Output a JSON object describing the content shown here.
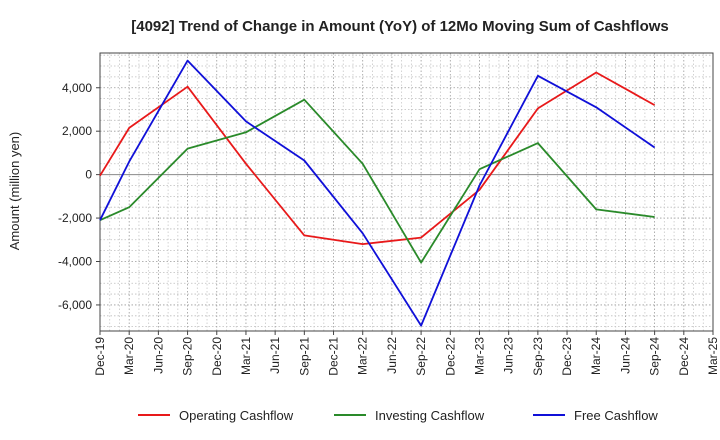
{
  "chart_data": {
    "type": "line",
    "title": "[4092]  Trend of Change in Amount (YoY) of 12Mo Moving Sum of Cashflows",
    "xlabel": "",
    "ylabel": "Amount (million yen)",
    "categories": [
      "Dec-19",
      "Mar-20",
      "Jun-20",
      "Sep-20",
      "Dec-20",
      "Mar-21",
      "Jun-21",
      "Sep-21",
      "Dec-21",
      "Mar-22",
      "Jun-22",
      "Sep-22",
      "Dec-22",
      "Mar-23",
      "Jun-23",
      "Sep-23",
      "Dec-23",
      "Mar-24",
      "Jun-24",
      "Sep-24",
      "Dec-24",
      "Mar-25"
    ],
    "ylim": [
      -7200,
      5600
    ],
    "yticks": [
      -6000,
      -4000,
      -2000,
      0,
      2000,
      4000
    ],
    "ytick_labels": [
      "-6,000",
      "-4,000",
      "-2,000",
      "0",
      "2,000",
      "4,000"
    ],
    "grid": true,
    "legend_position": "bottom",
    "series": [
      {
        "name": "Operating Cashflow",
        "color": "#e8191a",
        "values": [
          -50,
          2150,
          null,
          4050,
          null,
          500,
          null,
          -2800,
          null,
          -3200,
          null,
          -2900,
          null,
          -700,
          null,
          3050,
          null,
          4700,
          null,
          3200,
          null,
          null
        ]
      },
      {
        "name": "Investing Cashflow",
        "color": "#2a8a2a",
        "values": [
          -2100,
          -1500,
          null,
          1200,
          null,
          1950,
          null,
          3450,
          null,
          500,
          null,
          -4050,
          null,
          250,
          null,
          1450,
          null,
          -1600,
          null,
          -1950,
          null,
          null
        ]
      },
      {
        "name": "Free Cashflow",
        "color": "#1010d8",
        "values": [
          -2100,
          600,
          null,
          5250,
          null,
          2450,
          null,
          650,
          null,
          -2700,
          null,
          -6950,
          null,
          -500,
          null,
          4550,
          null,
          3100,
          null,
          1250,
          null,
          null
        ]
      }
    ]
  }
}
